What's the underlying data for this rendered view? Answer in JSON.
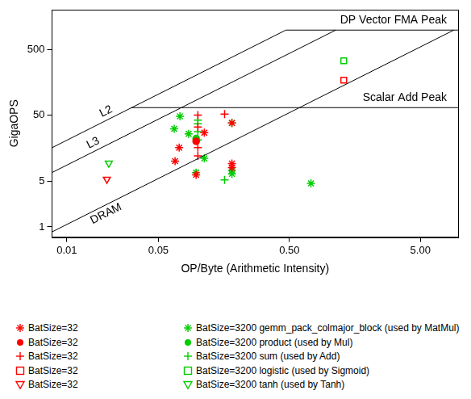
{
  "chart_data": {
    "type": "scatter",
    "x_label": "OP/Byte (Arithmetic Intensity)",
    "y_label": "GigaOPS",
    "log": true,
    "grid": false,
    "legend": "bottom",
    "xlim": [
      0.0077,
      9.7
    ],
    "xticks": [
      0.01,
      0.05,
      {
        "value": 0.5,
        "label": "0.50"
      },
      {
        "value": 5,
        "label": "5.00"
      }
    ],
    "ylim": [
      0.71,
      2000
    ],
    "yticks": [
      1,
      5,
      50,
      500
    ],
    "rooflines": [
      {
        "name": "L2",
        "x": [
          0.0077,
          0.47
        ],
        "values": [
          16,
          980
        ]
      },
      {
        "name": "L3",
        "x": [
          0.0077,
          1.13
        ],
        "values": [
          6.7,
          980
        ]
      },
      {
        "name": "DRAM",
        "x": [
          0.0077,
          9.0
        ],
        "values": [
          0.84,
          980
        ]
      },
      {
        "name": "DP Vector FMA Peak",
        "x": [
          0.47,
          9.7
        ],
        "values": [
          980,
          980
        ]
      },
      {
        "name": "Scalar Add Peak",
        "x": [
          0.031,
          9.7
        ],
        "values": [
          65,
          65
        ]
      }
    ],
    "series": [
      {
        "name": "BatSize=32",
        "color": "#ff0000",
        "marker": "asterisk",
        "x": [
          0.072,
          0.067,
          0.112,
          0.097,
          0.182,
          0.182,
          0.182
        ],
        "values": [
          16,
          10,
          27,
          6.2,
          38,
          9.2,
          8.0
        ]
      },
      {
        "name": "BatSize=3200 gemm_pack_colmajor_block (used by MatMul)",
        "color": "#00cd00",
        "marker": "asterisk",
        "x": [
          0.073,
          0.066,
          0.085,
          0.097,
          0.112,
          0.182,
          0.182,
          0.182,
          0.73
        ],
        "values": [
          48,
          31,
          26,
          6.7,
          11,
          38,
          7.2,
          6.4,
          4.6
        ]
      },
      {
        "name": "BatSize=32",
        "color": "#ff0000",
        "marker": "circle",
        "x": [
          0.097
        ],
        "values": [
          20
        ]
      },
      {
        "name": "BatSize=3200 product (used by Mul)",
        "color": "#00cd00",
        "marker": "circle",
        "x": [
          0.097
        ],
        "values": [
          22
        ]
      },
      {
        "name": "BatSize=32",
        "color": "#ff0000",
        "marker": "plus",
        "x": [
          0.1,
          0.16,
          0.1,
          0.1,
          0.1
        ],
        "values": [
          50,
          52,
          33,
          16,
          12
        ]
      },
      {
        "name": "BatSize=3200 sum (used by Add)",
        "color": "#00cd00",
        "marker": "plus",
        "x": [
          0.1,
          0.1,
          0.1,
          0.1,
          0.16
        ],
        "values": [
          42,
          37,
          28,
          21,
          5.2
        ]
      },
      {
        "name": "BatSize=32",
        "color": "#ff0000",
        "marker": "square",
        "x": [
          1.3
        ],
        "values": [
          170
        ]
      },
      {
        "name": "BatSize=3200 logistic (used by Sigmoid)",
        "color": "#00cd00",
        "marker": "square",
        "x": [
          1.3
        ],
        "values": [
          335
        ]
      },
      {
        "name": "BatSize=32",
        "color": "#ff0000",
        "marker": "triangle_down",
        "x": [
          0.0202
        ],
        "values": [
          5.3
        ]
      },
      {
        "name": "BatSize=3200 tanh (used by Tanh)",
        "color": "#00cd00",
        "marker": "triangle_down",
        "x": [
          0.0209
        ],
        "values": [
          9.3
        ]
      }
    ]
  }
}
